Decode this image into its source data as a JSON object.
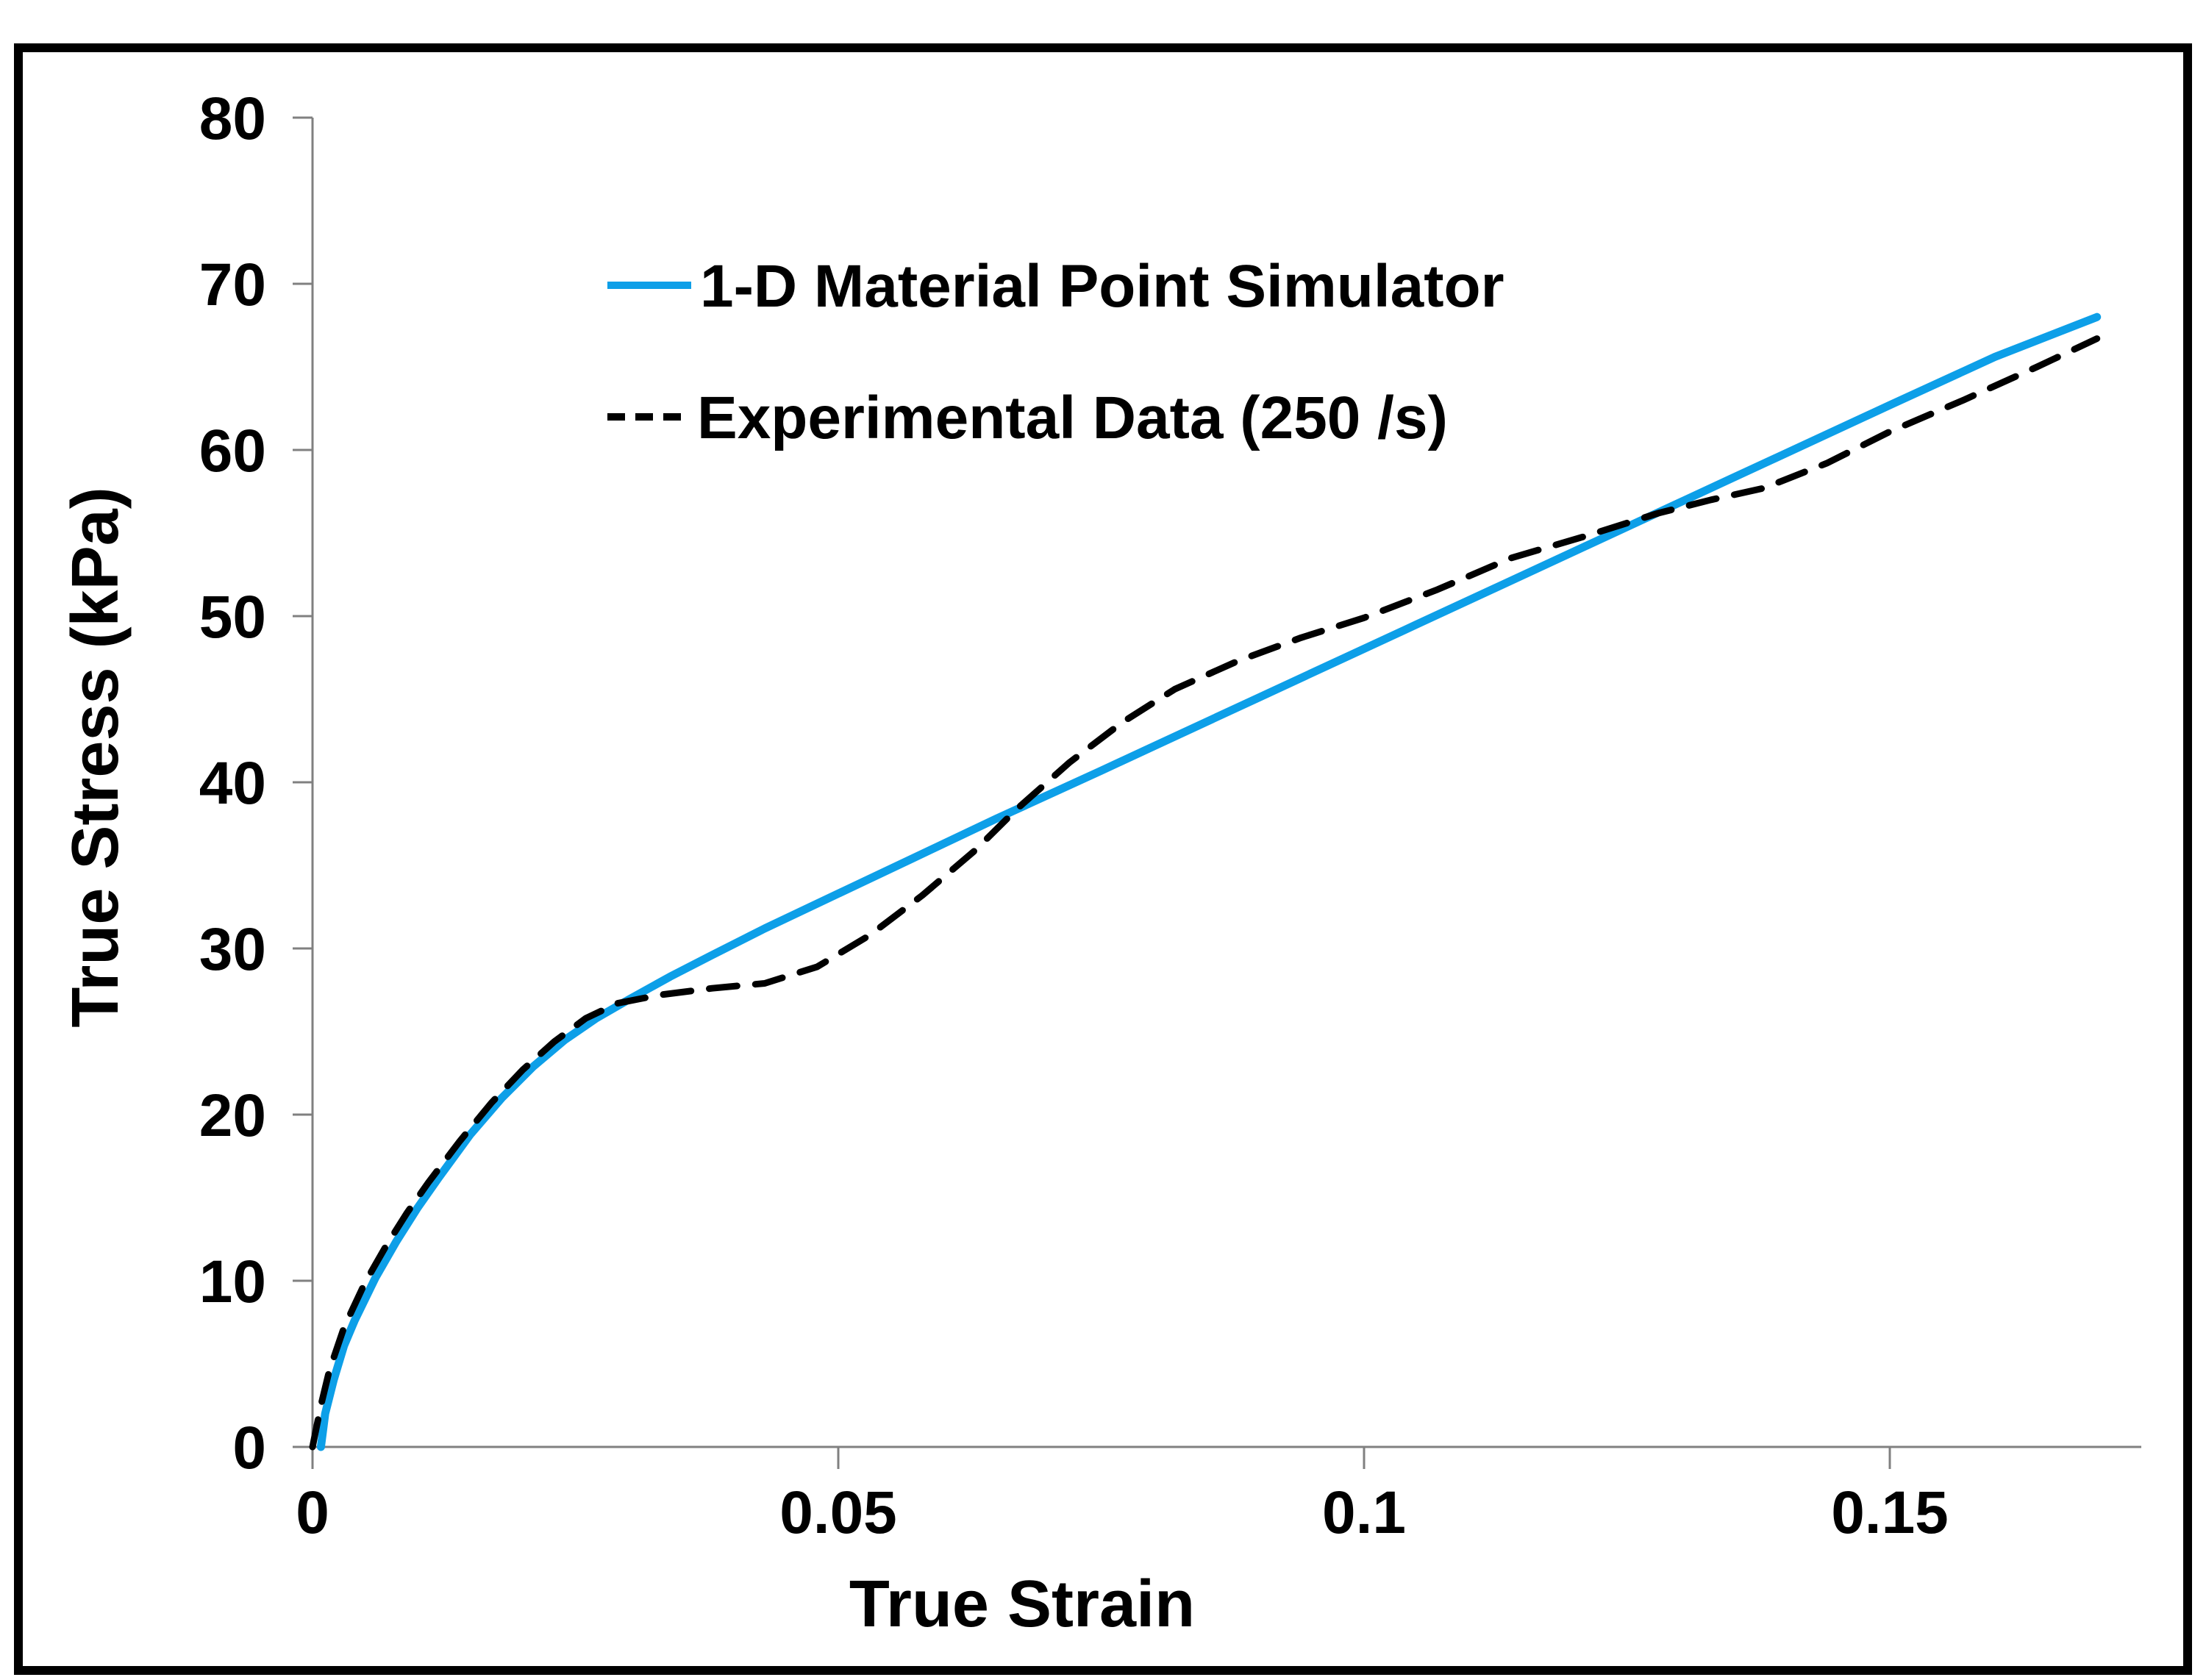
{
  "figure": {
    "background_color": "#ffffff",
    "border_color": "#000000",
    "axis_color": "#808080"
  },
  "chart_data": {
    "type": "line",
    "title": "",
    "xlabel": "True Strain",
    "ylabel": "True Stress (kPa)",
    "xlim": [
      0,
      0.174
    ],
    "ylim": [
      0,
      80
    ],
    "x_ticks": [
      0,
      0.05,
      0.1,
      0.15
    ],
    "x_tick_labels": [
      "0",
      "0.05",
      "0.1",
      "0.15"
    ],
    "y_ticks": [
      0,
      10,
      20,
      30,
      40,
      50,
      60,
      70,
      80
    ],
    "y_tick_labels": [
      "0",
      "10",
      "20",
      "30",
      "40",
      "50",
      "60",
      "70",
      "80"
    ],
    "grid": false,
    "legend_position": "upper-left-inside",
    "series": [
      {
        "name": "1-D Material Point Simulator",
        "color": "#0d9fe8",
        "style": "solid",
        "points": [
          [
            0.0008,
            0
          ],
          [
            0.0012,
            2.0
          ],
          [
            0.002,
            4.0
          ],
          [
            0.003,
            6.1
          ],
          [
            0.004,
            7.6
          ],
          [
            0.006,
            10.2
          ],
          [
            0.008,
            12.4
          ],
          [
            0.01,
            14.4
          ],
          [
            0.012,
            16.2
          ],
          [
            0.015,
            18.8
          ],
          [
            0.018,
            21.0
          ],
          [
            0.021,
            22.9
          ],
          [
            0.024,
            24.5
          ],
          [
            0.027,
            25.8
          ],
          [
            0.03,
            26.9
          ],
          [
            0.034,
            28.3
          ],
          [
            0.038,
            29.6
          ],
          [
            0.043,
            31.2
          ],
          [
            0.05,
            33.3
          ],
          [
            0.057,
            35.4
          ],
          [
            0.065,
            37.8
          ],
          [
            0.075,
            40.7
          ],
          [
            0.09,
            45.1
          ],
          [
            0.105,
            49.5
          ],
          [
            0.12,
            53.9
          ],
          [
            0.135,
            58.3
          ],
          [
            0.15,
            62.7
          ],
          [
            0.16,
            65.6
          ],
          [
            0.1697,
            68.0
          ]
        ]
      },
      {
        "name": "Experimental Data (250 /s)",
        "color": "#000000",
        "style": "dashed",
        "points": [
          [
            0.0,
            0
          ],
          [
            0.0008,
            2.5
          ],
          [
            0.0016,
            4.6
          ],
          [
            0.003,
            7.2
          ],
          [
            0.005,
            9.9
          ],
          [
            0.007,
            12.1
          ],
          [
            0.009,
            14.1
          ],
          [
            0.011,
            15.9
          ],
          [
            0.014,
            18.4
          ],
          [
            0.017,
            20.7
          ],
          [
            0.02,
            22.7
          ],
          [
            0.023,
            24.4
          ],
          [
            0.026,
            25.8
          ],
          [
            0.029,
            26.7
          ],
          [
            0.033,
            27.2
          ],
          [
            0.038,
            27.6
          ],
          [
            0.043,
            27.9
          ],
          [
            0.048,
            28.9
          ],
          [
            0.053,
            30.8
          ],
          [
            0.058,
            33.2
          ],
          [
            0.063,
            35.9
          ],
          [
            0.067,
            38.4
          ],
          [
            0.072,
            41.2
          ],
          [
            0.077,
            43.6
          ],
          [
            0.082,
            45.6
          ],
          [
            0.088,
            47.3
          ],
          [
            0.094,
            48.7
          ],
          [
            0.1,
            49.9
          ],
          [
            0.107,
            51.6
          ],
          [
            0.114,
            53.5
          ],
          [
            0.121,
            54.8
          ],
          [
            0.128,
            56.2
          ],
          [
            0.133,
            57.0
          ],
          [
            0.138,
            57.7
          ],
          [
            0.144,
            59.2
          ],
          [
            0.15,
            61.1
          ],
          [
            0.157,
            63.0
          ],
          [
            0.164,
            65.0
          ],
          [
            0.1697,
            66.7
          ]
        ]
      }
    ]
  }
}
